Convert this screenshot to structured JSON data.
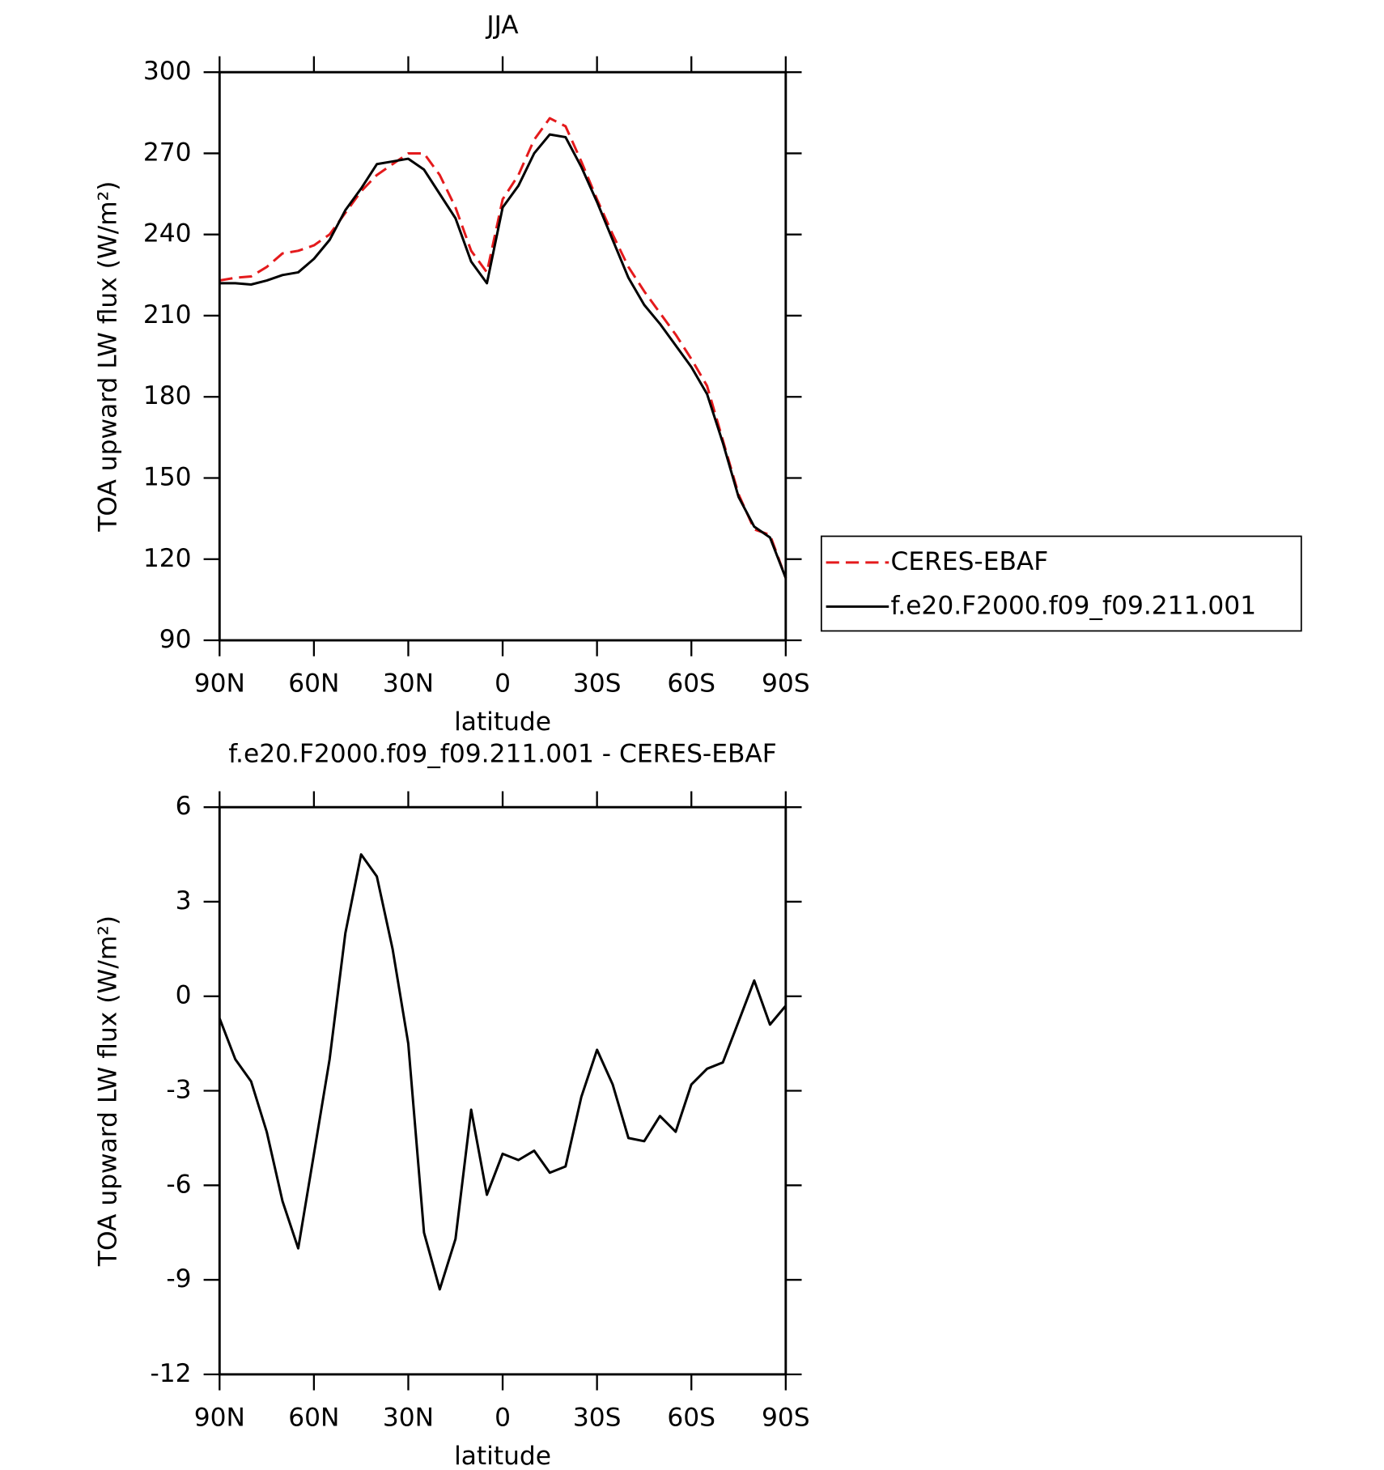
{
  "chart_data": [
    {
      "type": "line",
      "title": "JJA",
      "xlabel": "latitude",
      "ylabel": "TOA upward LW flux (W/m²)",
      "x": [
        90,
        85,
        80,
        75,
        70,
        65,
        60,
        55,
        50,
        45,
        40,
        35,
        30,
        25,
        20,
        15,
        10,
        5,
        0,
        -5,
        -10,
        -15,
        -20,
        -25,
        -30,
        -35,
        -40,
        -45,
        -50,
        -55,
        -60,
        -65,
        -70,
        -75,
        -80,
        -85,
        -90
      ],
      "xlim": [
        90,
        -90
      ],
      "xticks": [
        {
          "value": 90,
          "label": "90N"
        },
        {
          "value": 60,
          "label": "60N"
        },
        {
          "value": 30,
          "label": "30N"
        },
        0,
        {
          "value": -30,
          "label": "30S"
        },
        {
          "value": -60,
          "label": "60S"
        },
        {
          "value": -90,
          "label": "90S"
        }
      ],
      "ylim": [
        90,
        300
      ],
      "yticks": [
        300,
        270,
        240,
        210,
        180,
        150,
        120,
        90
      ],
      "legend": "right",
      "series": [
        {
          "name": "CERES-EBAF",
          "color": "#e41a1c",
          "dash": true,
          "values": [
            223,
            224,
            224.5,
            228,
            233,
            234,
            236,
            240,
            248,
            256,
            262,
            266,
            270,
            270,
            262,
            250,
            234,
            226,
            253,
            262,
            275,
            283,
            280,
            267,
            253,
            240,
            228,
            219,
            211,
            203,
            194,
            184,
            164,
            144,
            131,
            129,
            113
          ]
        },
        {
          "name": "f.e20.F2000.f09_f09.211.001",
          "color": "#000000",
          "dash": false,
          "values": [
            222,
            222,
            221.5,
            223,
            225,
            226,
            231,
            238,
            249,
            257,
            266,
            267,
            268,
            264,
            255,
            246,
            230,
            222,
            250,
            258,
            270,
            277,
            276,
            265,
            252,
            238,
            224,
            214,
            207,
            199,
            191,
            181,
            163,
            143,
            132,
            128,
            113
          ]
        }
      ]
    },
    {
      "type": "line",
      "title": "f.e20.F2000.f09_f09.211.001 - CERES-EBAF",
      "xlabel": "latitude",
      "ylabel": "TOA upward LW flux (W/m²)",
      "x": [
        90,
        85,
        80,
        75,
        70,
        65,
        60,
        55,
        50,
        45,
        40,
        35,
        30,
        25,
        20,
        15,
        10,
        5,
        0,
        -5,
        -10,
        -15,
        -20,
        -25,
        -30,
        -35,
        -40,
        -45,
        -50,
        -55,
        -60,
        -65,
        -70,
        -75,
        -80,
        -85,
        -90
      ],
      "xlim": [
        90,
        -90
      ],
      "xticks": [
        {
          "value": 90,
          "label": "90N"
        },
        {
          "value": 60,
          "label": "60N"
        },
        {
          "value": 30,
          "label": "30N"
        },
        0,
        {
          "value": -30,
          "label": "30S"
        },
        {
          "value": -60,
          "label": "60S"
        },
        {
          "value": -90,
          "label": "90S"
        }
      ],
      "ylim": [
        -12,
        6
      ],
      "yticks": [
        6,
        3,
        0,
        -3,
        -6,
        -9,
        -12
      ],
      "series": [
        {
          "color": "#000000",
          "dash": false,
          "values": [
            -0.7,
            -2.0,
            -2.7,
            -4.3,
            -6.5,
            -8.0,
            -5.0,
            -2.0,
            2.0,
            4.5,
            3.8,
            1.5,
            -1.5,
            -7.5,
            -9.3,
            -7.7,
            -3.6,
            -6.3,
            -5.0,
            -5.2,
            -4.9,
            -5.6,
            -5.4,
            -3.2,
            -1.7,
            -2.8,
            -4.5,
            -4.6,
            -3.8,
            -4.3,
            -2.8,
            -2.3,
            -2.1,
            -0.8,
            0.5,
            -0.9,
            -0.3
          ]
        }
      ]
    }
  ]
}
